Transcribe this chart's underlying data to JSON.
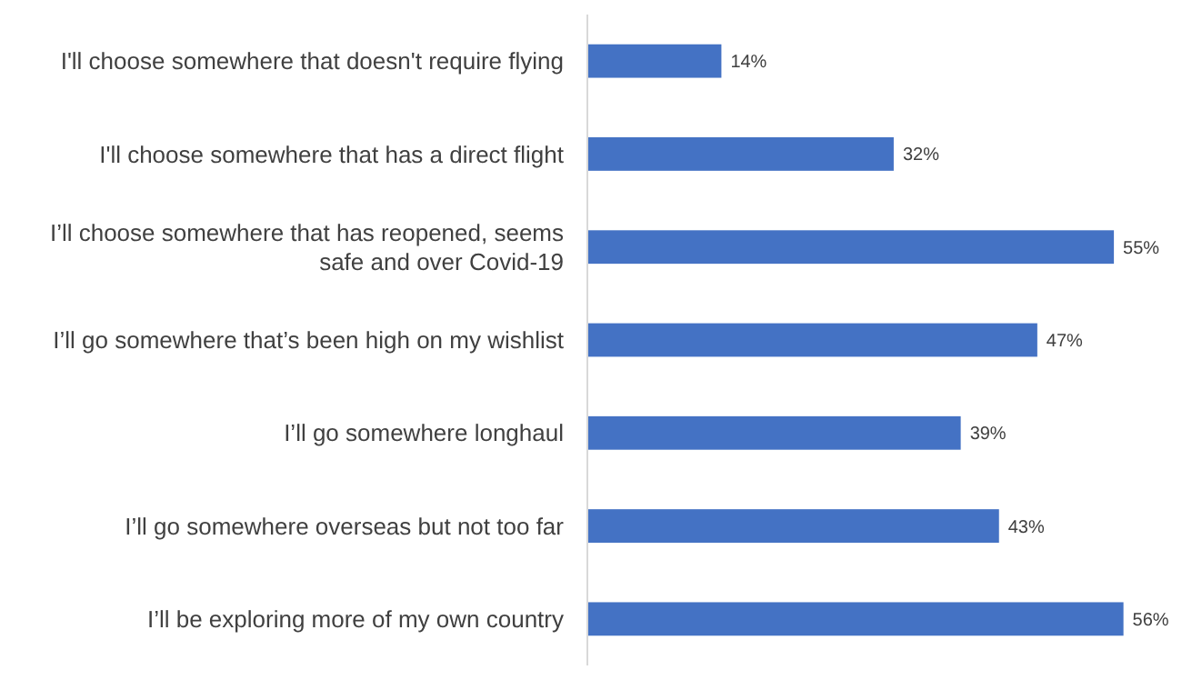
{
  "chart_data": {
    "type": "bar",
    "orientation": "horizontal",
    "categories": [
      "I'll choose somewhere that doesn't require flying",
      "I'll choose somewhere that has a direct flight",
      "I’ll choose somewhere that has reopened, seems safe and over Covid-19",
      "I’ll go somewhere that’s been high on my wishlist",
      "I’ll go somewhere longhaul",
      "I’ll go somewhere overseas but not too far",
      "I’ll be exploring more of my own country"
    ],
    "values": [
      14,
      32,
      55,
      47,
      39,
      43,
      56
    ],
    "value_labels": [
      "14%",
      "32%",
      "55%",
      "47%",
      "39%",
      "43%",
      "56%"
    ],
    "color": "#4472c4",
    "tick_labels": "y"
  }
}
